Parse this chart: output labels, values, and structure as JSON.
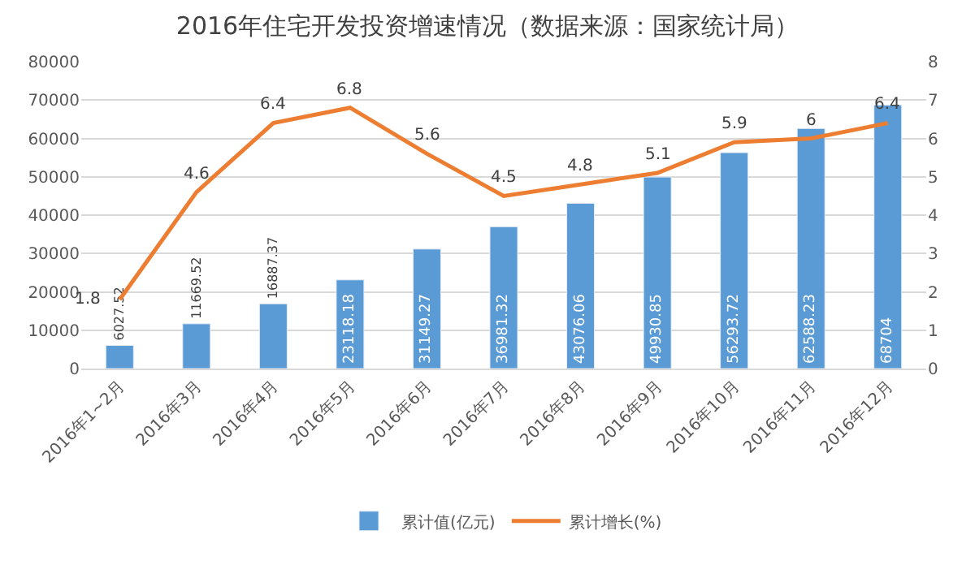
{
  "chart_data": {
    "type": "bar",
    "title": "2016年住宅开发投资增速情况（数据来源：国家统计局）",
    "categories": [
      "2016年1~2月",
      "2016年3月",
      "2016年4月",
      "2016年5月",
      "2016年6月",
      "2016年7月",
      "2016年8月",
      "2016年9月",
      "2016年10月",
      "2016年11月",
      "2016年12月"
    ],
    "series": [
      {
        "name": "累计值(亿元)",
        "color": "#5b9bd5",
        "values": [
          6027.52,
          11669.52,
          16887.37,
          23118.18,
          31149.27,
          36981.32,
          43076.06,
          49930.85,
          56293.72,
          62588.23,
          68704
        ]
      },
      {
        "name": "累计增长(%)",
        "color": "#ed7d31",
        "type": "line",
        "axis": "y2",
        "values": [
          1.8,
          4.6,
          6.4,
          6.8,
          5.6,
          4.5,
          4.8,
          5.1,
          5.9,
          6,
          6.4
        ]
      }
    ],
    "ylim": [
      0,
      80000
    ],
    "yticks": [
      0,
      10000,
      20000,
      30000,
      40000,
      50000,
      60000,
      70000,
      80000
    ],
    "y2lim": [
      0,
      8
    ],
    "y2ticks": [
      0,
      1,
      2,
      3,
      4,
      5,
      6,
      7,
      8
    ],
    "data_labels": true,
    "grid": "y",
    "legend": "bottom",
    "marker": "none",
    "line_style": "solid"
  }
}
